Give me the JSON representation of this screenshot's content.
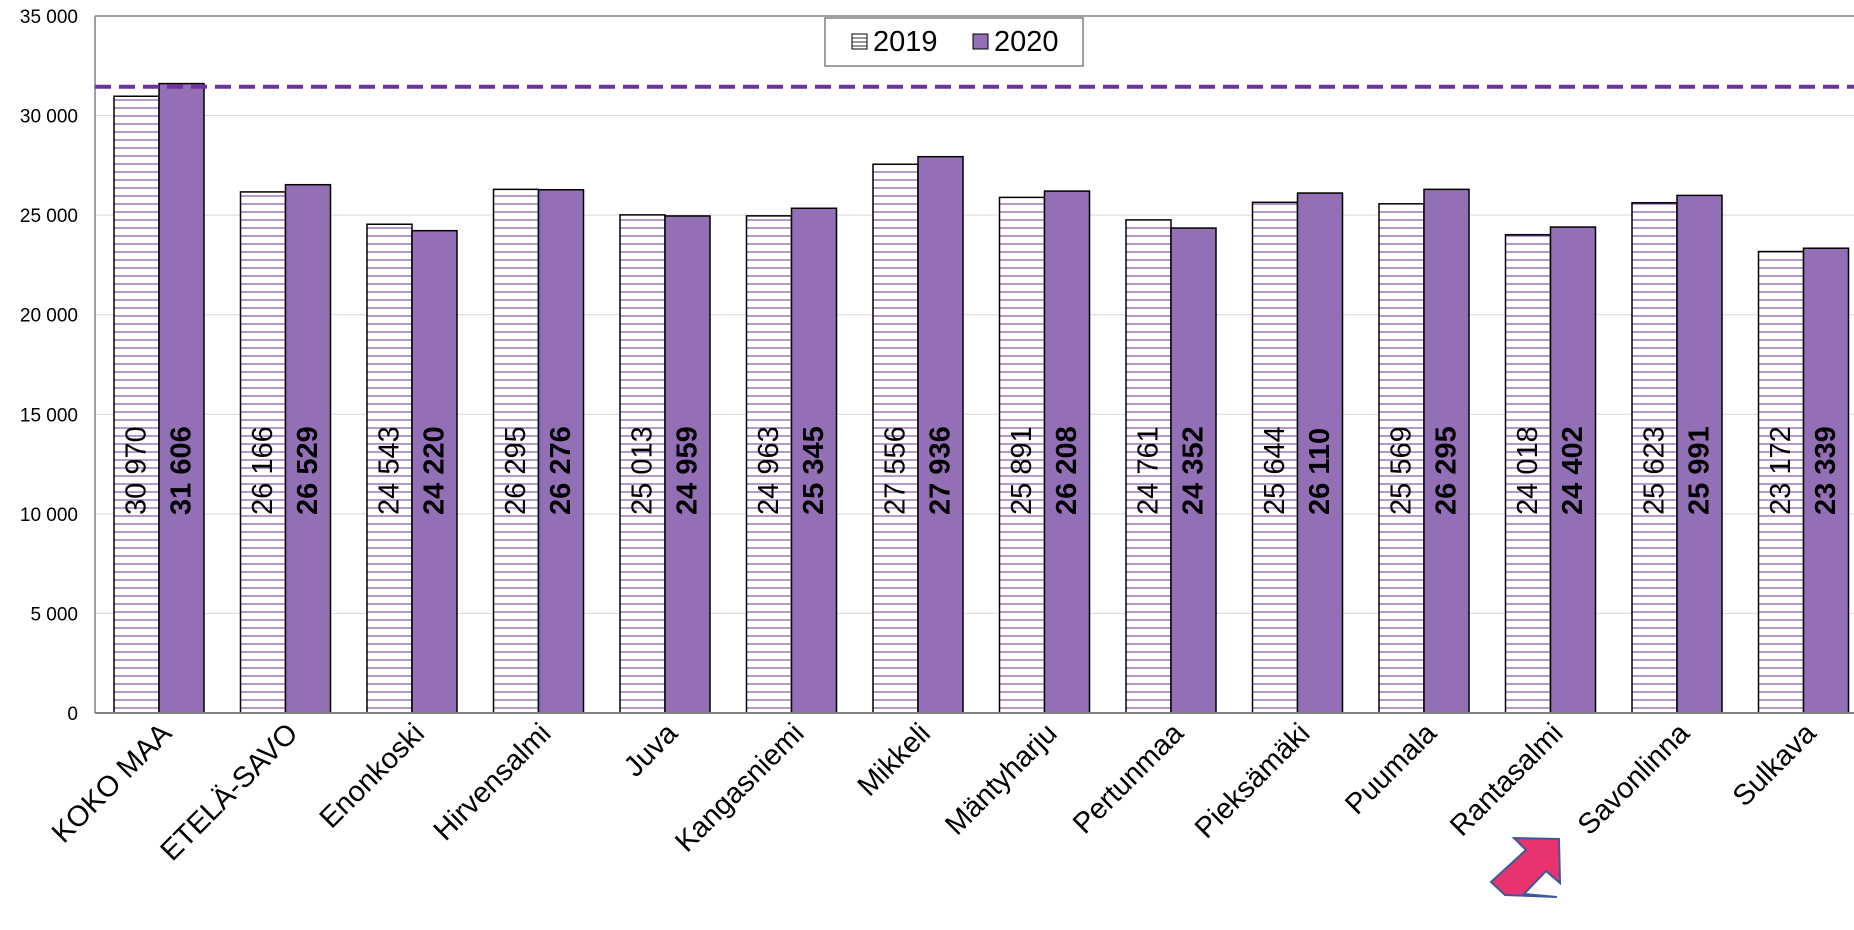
{
  "chart_data": {
    "type": "bar",
    "title": "",
    "xlabel": "",
    "ylabel": "",
    "categories": [
      "KOKO MAA",
      "ETELÄ-SAVO",
      "Enonkoski",
      "Hirvensalmi",
      "Juva",
      "Kangasniemi",
      "Mikkeli",
      "Mäntyharju",
      "Pertunmaa",
      "Pieksämäki",
      "Puumala",
      "Rantasalmi",
      "Savonlinna",
      "Sulkava"
    ],
    "series": [
      {
        "name": "2019",
        "values": [
          30970,
          26166,
          24543,
          26295,
          25013,
          24963,
          27556,
          25891,
          24761,
          25644,
          25569,
          24018,
          25623,
          23172
        ],
        "labels": [
          "30 970",
          "26 166",
          "24 543",
          "26 295",
          "25 013",
          "24 963",
          "27 556",
          "25 891",
          "24 761",
          "25 644",
          "25 569",
          "24 018",
          "25 623",
          "23 172"
        ],
        "color": "#ffffff",
        "stripe_color": "#7030a0",
        "pattern": "horizontal-stripes"
      },
      {
        "name": "2020",
        "values": [
          31606,
          26529,
          24220,
          26276,
          24959,
          25345,
          27936,
          26208,
          24352,
          26110,
          26295,
          24402,
          25991,
          23339
        ],
        "labels": [
          "31 606",
          "26 529",
          "24 220",
          "26 276",
          "24 959",
          "25 345",
          "27 936",
          "26 208",
          "24 352",
          "26 110",
          "26 295",
          "24 402",
          "25 991",
          "23 339"
        ],
        "color": "#9370b5"
      }
    ],
    "ylim": [
      0,
      35000
    ],
    "yticks": [
      {
        "value": 0,
        "label": "0"
      },
      {
        "value": 5000,
        "label": "5 000"
      },
      {
        "value": 10000,
        "label": "10 000"
      },
      {
        "value": 15000,
        "label": "15 000"
      },
      {
        "value": 20000,
        "label": "20 000"
      },
      {
        "value": 25000,
        "label": "25 000"
      },
      {
        "value": 30000,
        "label": "30 000"
      },
      {
        "value": 35000,
        "label": "35 000"
      }
    ],
    "reference_line": {
      "value": 31450,
      "color": "#7030a0",
      "style": "dashed"
    },
    "grid": true,
    "legend": {
      "position": "top-center",
      "entries": [
        "2019",
        "2020"
      ]
    },
    "highlight": {
      "category": "Savonlinna",
      "marker": "arrow",
      "color": "#e8336e"
    }
  }
}
